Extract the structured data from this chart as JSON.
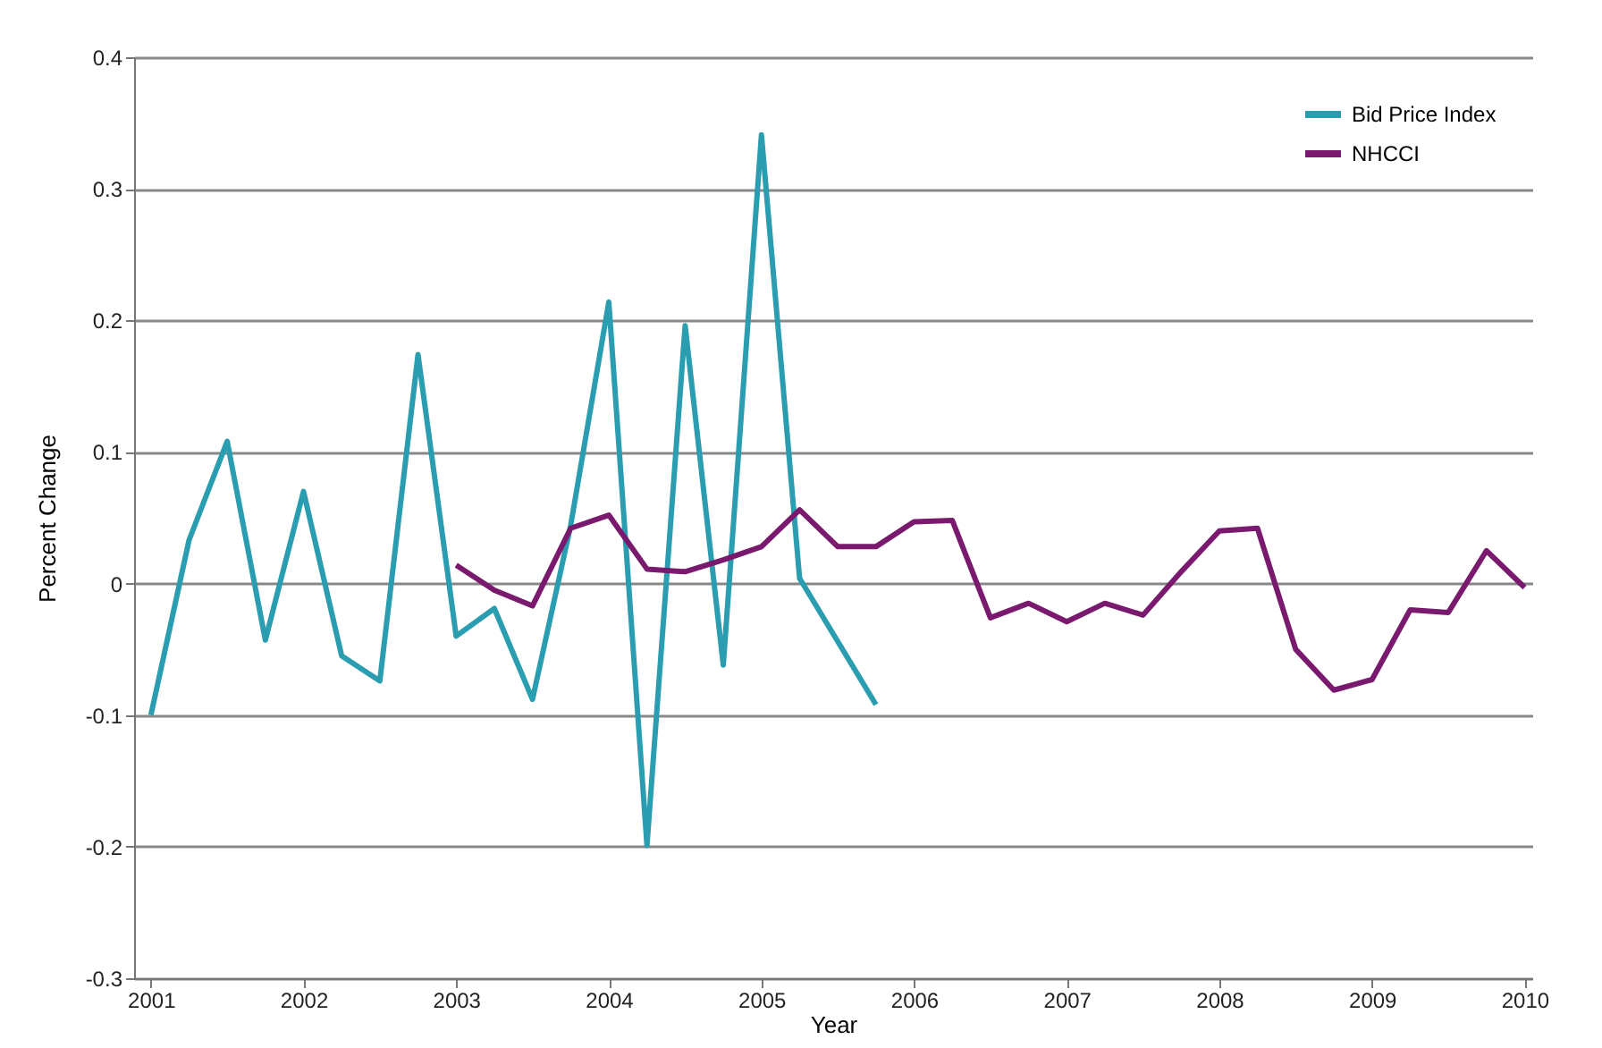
{
  "chart_data": {
    "type": "line",
    "xlabel": "Year",
    "ylabel": "Percent Change",
    "xlim": [
      2000.89,
      2010.05
    ],
    "xticks": [
      2001,
      2002,
      2003,
      2004,
      2005,
      2006,
      2007,
      2008,
      2009,
      2010
    ],
    "ylim": [
      -0.3,
      0.4
    ],
    "yticks": [
      -0.3,
      -0.2,
      -0.1,
      0,
      0.1,
      0.2,
      0.3,
      0.4
    ],
    "grid": "y",
    "legend": "top right",
    "marker": "none",
    "line_style": "solid",
    "series": [
      {
        "name": "Bid Price Index",
        "color": "#2a9db0",
        "x": [
          2001,
          2001.25,
          2001.5,
          2001.75,
          2002,
          2002.25,
          2002.5,
          2002.75,
          2003,
          2003.25,
          2003.5,
          2003.75,
          2004,
          2004.25,
          2004.5,
          2004.75,
          2005,
          2005.25,
          2005.75
        ],
        "values": [
          -0.1,
          0.033,
          0.108,
          -0.043,
          0.07,
          -0.055,
          -0.074,
          0.174,
          -0.04,
          -0.019,
          -0.088,
          0.044,
          0.214,
          -0.199,
          0.196,
          -0.062,
          0.341,
          0.004,
          -0.092
        ]
      },
      {
        "name": "NHCCI",
        "color": "#7a1a6e",
        "x": [
          2003,
          2003.25,
          2003.5,
          2003.75,
          2004,
          2004.25,
          2004.5,
          2004.75,
          2005,
          2005.25,
          2005.5,
          2005.75,
          2006,
          2006.25,
          2006.5,
          2006.75,
          2007,
          2007.25,
          2007.5,
          2007.75,
          2008,
          2008.25,
          2008.5,
          2008.75,
          2009,
          2009.25,
          2009.5,
          2009.75,
          2010
        ],
        "values": [
          0.014,
          -0.005,
          -0.017,
          0.042,
          0.052,
          0.011,
          0.009,
          0.018,
          0.028,
          0.056,
          0.028,
          0.028,
          0.047,
          0.048,
          -0.026,
          -0.015,
          -0.029,
          -0.015,
          -0.024,
          0.009,
          0.04,
          0.042,
          -0.05,
          -0.081,
          -0.073,
          -0.02,
          -0.022,
          0.025,
          -0.003
        ]
      }
    ]
  }
}
